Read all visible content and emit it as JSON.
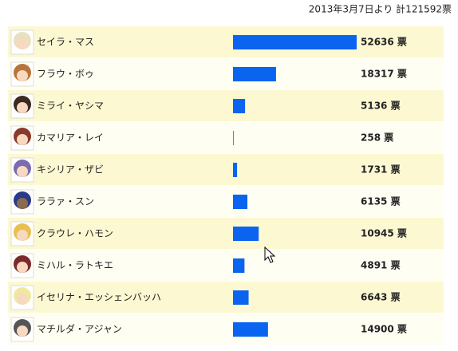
{
  "chart_data": {
    "type": "bar",
    "orientation": "horizontal",
    "title": "2013年3月7日より 計121592票",
    "categories": [
      "セイラ・マス",
      "フラウ・ボゥ",
      "ミライ・ヤシマ",
      "カマリア・レイ",
      "キシリア・ザビ",
      "ララァ・スン",
      "クラウレ・ハモン",
      "ミハル・ラトキエ",
      "イセリナ・エッシェンバッハ",
      "マチルダ・アジャン"
    ],
    "values": [
      52636,
      18317,
      5136,
      258,
      1731,
      6135,
      10945,
      4891,
      6643,
      14900
    ],
    "value_labels": [
      "52636 票",
      "18317 票",
      "5136 票",
      "258 票",
      "1731 票",
      "6135 票",
      "10945 票",
      "4891 票",
      "6643 票",
      "14900 票"
    ],
    "color": "#0a64f0"
  }
}
